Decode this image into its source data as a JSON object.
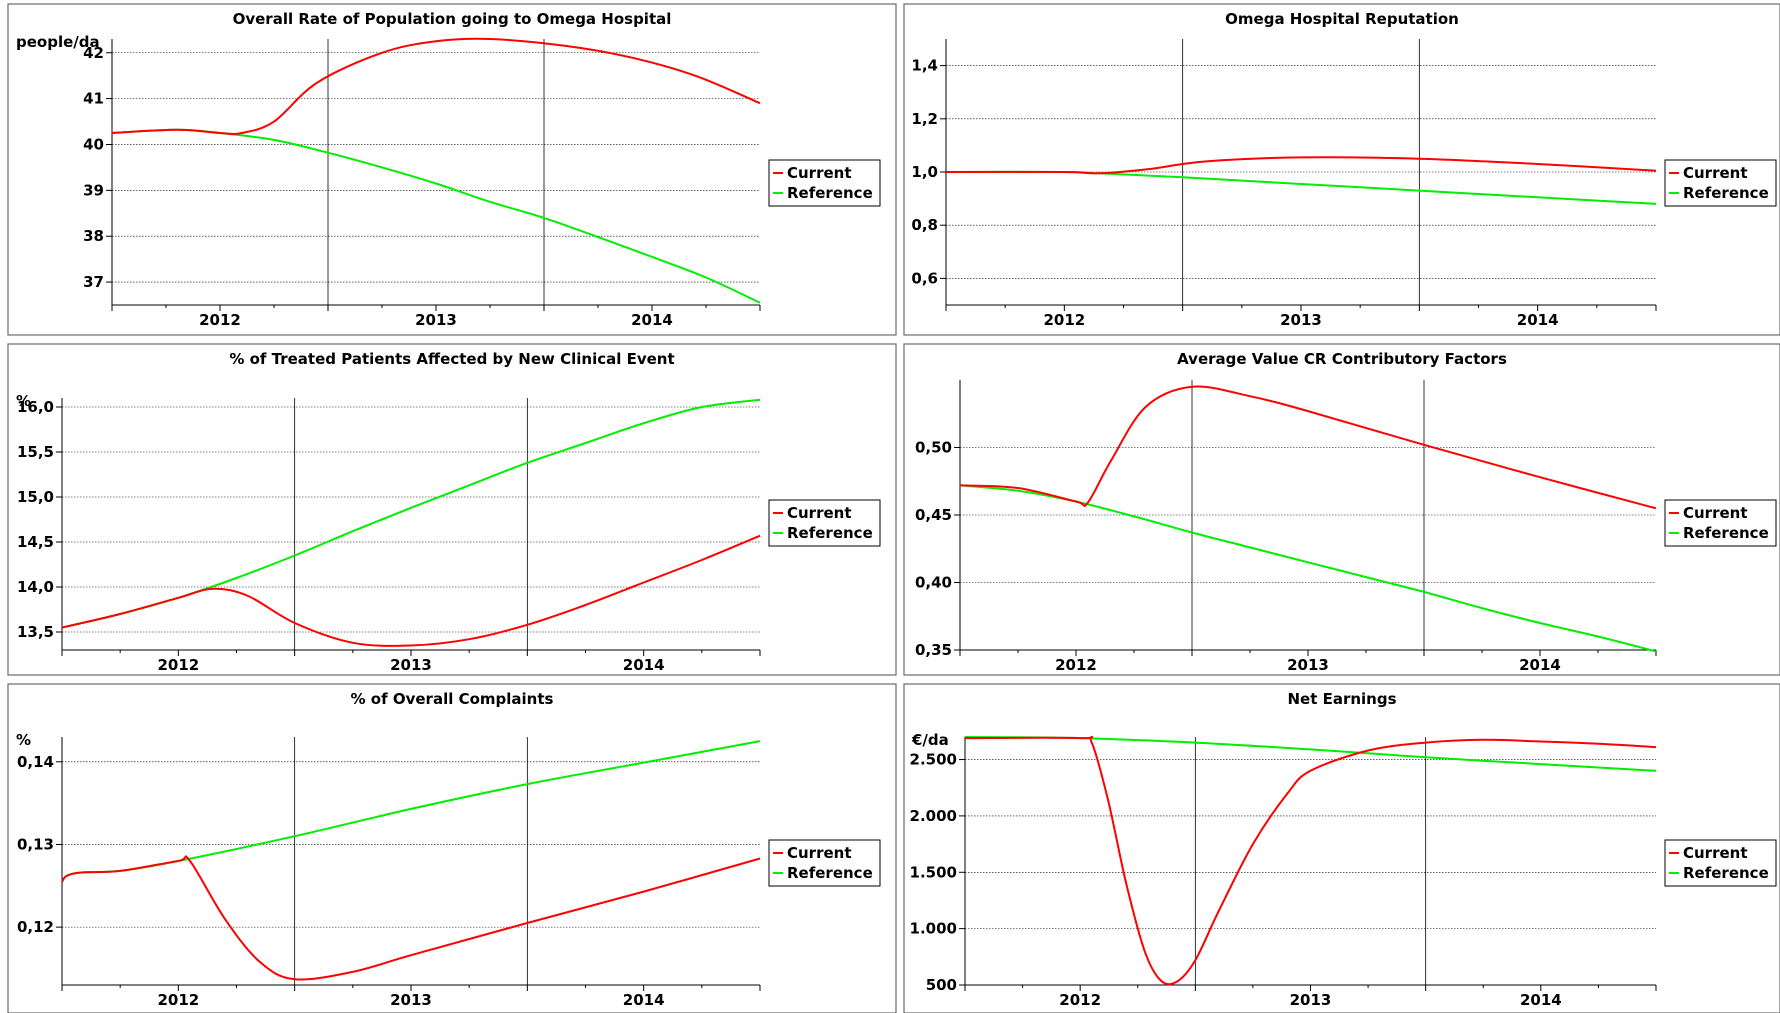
{
  "chart_data": [
    {
      "type": "line",
      "title": "Overall Rate of Population going to Omega Hospital",
      "unit": "people/da",
      "x_ticks": [
        "2012",
        "2013",
        "2014"
      ],
      "xlim": [
        2011.5,
        2014.5
      ],
      "ylim": [
        36.5,
        42.3
      ],
      "y_ticks": [
        37,
        38,
        39,
        40,
        41,
        42
      ],
      "y_tick_labels": [
        "37",
        "38",
        "39",
        "40",
        "41",
        "42"
      ],
      "legend": "right",
      "grid": true,
      "series": [
        {
          "name": "Current",
          "color": "#ff0000",
          "x": [
            2011.5,
            2011.8,
            2012.0,
            2012.1,
            2012.25,
            2012.45,
            2012.75,
            2013.0,
            2013.25,
            2013.6,
            2013.9,
            2014.2,
            2014.5
          ],
          "y": [
            40.25,
            40.32,
            40.25,
            40.25,
            40.5,
            41.35,
            42.0,
            42.25,
            42.3,
            42.15,
            41.9,
            41.5,
            40.9
          ]
        },
        {
          "name": "Reference",
          "color": "#00ee00",
          "x": [
            2011.5,
            2011.8,
            2012.0,
            2012.25,
            2012.5,
            2012.75,
            2013.0,
            2013.25,
            2013.5,
            2013.75,
            2014.0,
            2014.25,
            2014.5
          ],
          "y": [
            40.25,
            40.32,
            40.25,
            40.1,
            39.82,
            39.5,
            39.15,
            38.75,
            38.4,
            37.98,
            37.55,
            37.1,
            36.55
          ]
        }
      ]
    },
    {
      "type": "line",
      "title": "Omega Hospital Reputation",
      "unit": "",
      "x_ticks": [
        "2012",
        "2013",
        "2014"
      ],
      "xlim": [
        2011.5,
        2014.5
      ],
      "ylim": [
        0.5,
        1.5
      ],
      "y_ticks": [
        0.6,
        0.8,
        1.0,
        1.2,
        1.4
      ],
      "y_tick_labels": [
        "0,6",
        "0,8",
        "1,0",
        "1,2",
        "1,4"
      ],
      "legend": "right",
      "grid": true,
      "series": [
        {
          "name": "Current",
          "color": "#ff0000",
          "x": [
            2011.5,
            2012.0,
            2012.15,
            2012.35,
            2012.6,
            2013.0,
            2013.5,
            2014.0,
            2014.5
          ],
          "y": [
            1.0,
            1.0,
            0.995,
            1.01,
            1.04,
            1.055,
            1.05,
            1.03,
            1.005
          ]
        },
        {
          "name": "Reference",
          "color": "#00ee00",
          "x": [
            2011.5,
            2012.0,
            2012.15,
            2012.5,
            2013.0,
            2013.5,
            2014.0,
            2014.5
          ],
          "y": [
            1.0,
            1.0,
            0.995,
            0.98,
            0.955,
            0.93,
            0.905,
            0.88
          ]
        }
      ]
    },
    {
      "type": "line",
      "title": "% of Treated Patients Affected by New Clinical Event",
      "unit": "%",
      "x_ticks": [
        "2012",
        "2013",
        "2014"
      ],
      "xlim": [
        2011.5,
        2014.5
      ],
      "ylim": [
        13.3,
        16.1
      ],
      "y_ticks": [
        13.5,
        14.0,
        14.5,
        15.0,
        15.5,
        16.0
      ],
      "y_tick_labels": [
        "13,5",
        "14,0",
        "14,5",
        "15,0",
        "15,5",
        "16,0"
      ],
      "legend": "right",
      "grid": true,
      "series": [
        {
          "name": "Current",
          "color": "#ff0000",
          "x": [
            2011.5,
            2011.75,
            2012.0,
            2012.15,
            2012.3,
            2012.5,
            2012.75,
            2013.0,
            2013.25,
            2013.5,
            2013.75,
            2014.0,
            2014.25,
            2014.5
          ],
          "y": [
            13.55,
            13.7,
            13.88,
            13.98,
            13.9,
            13.6,
            13.38,
            13.35,
            13.42,
            13.58,
            13.8,
            14.05,
            14.3,
            14.57
          ]
        },
        {
          "name": "Reference",
          "color": "#00ee00",
          "x": [
            2011.5,
            2011.75,
            2012.0,
            2012.25,
            2012.5,
            2012.75,
            2013.0,
            2013.25,
            2013.5,
            2013.75,
            2014.0,
            2014.25,
            2014.5
          ],
          "y": [
            13.55,
            13.7,
            13.88,
            14.1,
            14.35,
            14.62,
            14.88,
            15.13,
            15.38,
            15.6,
            15.82,
            16.0,
            16.08
          ]
        }
      ]
    },
    {
      "type": "line",
      "title": "Average Value CR Contributory Factors",
      "unit": "",
      "x_ticks": [
        "2012",
        "2013",
        "2014"
      ],
      "xlim": [
        2011.5,
        2014.5
      ],
      "ylim": [
        0.35,
        0.55
      ],
      "y_ticks": [
        0.35,
        0.4,
        0.45,
        0.5
      ],
      "y_tick_labels": [
        "0,35",
        "0,40",
        "0,45",
        "0,50"
      ],
      "legend": "right",
      "grid": true,
      "series": [
        {
          "name": "Current",
          "color": "#ff0000",
          "x": [
            2011.5,
            2011.75,
            2012.0,
            2012.05,
            2012.15,
            2012.3,
            2012.5,
            2012.75,
            2013.0,
            2013.5,
            2014.0,
            2014.5
          ],
          "y": [
            0.472,
            0.47,
            0.46,
            0.459,
            0.49,
            0.53,
            0.545,
            0.538,
            0.527,
            0.502,
            0.478,
            0.455
          ]
        },
        {
          "name": "Reference",
          "color": "#00ee00",
          "x": [
            2011.5,
            2011.75,
            2012.0,
            2012.25,
            2012.5,
            2012.75,
            2013.0,
            2013.25,
            2013.5,
            2013.75,
            2014.0,
            2014.25,
            2014.5
          ],
          "y": [
            0.472,
            0.468,
            0.46,
            0.449,
            0.437,
            0.426,
            0.415,
            0.404,
            0.393,
            0.381,
            0.37,
            0.36,
            0.349
          ]
        }
      ]
    },
    {
      "type": "line",
      "title": "% of Overall Complaints",
      "unit": "%",
      "x_ticks": [
        "2012",
        "2013",
        "2014"
      ],
      "xlim": [
        2011.5,
        2014.5
      ],
      "ylim": [
        0.113,
        0.143
      ],
      "y_ticks": [
        0.12,
        0.13,
        0.14
      ],
      "y_tick_labels": [
        "0,12",
        "0,13",
        "0,14"
      ],
      "legend": "right",
      "grid": true,
      "series": [
        {
          "name": "Current",
          "color": "#ff0000",
          "x": [
            2011.5,
            2011.52,
            2011.58,
            2011.75,
            2012.0,
            2012.05,
            2012.2,
            2012.35,
            2012.5,
            2012.75,
            2013.0,
            2013.5,
            2014.0,
            2014.5
          ],
          "y": [
            0.1255,
            0.1262,
            0.1266,
            0.1268,
            0.128,
            0.128,
            0.121,
            0.1158,
            0.1137,
            0.1146,
            0.1166,
            0.1205,
            0.1243,
            0.1283
          ]
        },
        {
          "name": "Reference",
          "color": "#00ee00",
          "x": [
            2011.5,
            2011.52,
            2011.58,
            2011.75,
            2012.0,
            2012.5,
            2013.0,
            2013.5,
            2014.0,
            2014.5
          ],
          "y": [
            0.1255,
            0.1262,
            0.1266,
            0.1268,
            0.128,
            0.131,
            0.1343,
            0.1373,
            0.1399,
            0.1425
          ]
        }
      ]
    },
    {
      "type": "line",
      "title": "Net Earnings",
      "unit": "€/da",
      "x_ticks": [
        "2012",
        "2013",
        "2014"
      ],
      "xlim": [
        2011.5,
        2014.5
      ],
      "ylim": [
        500,
        2700
      ],
      "y_ticks": [
        500,
        1000,
        1500,
        2000,
        2500
      ],
      "y_tick_labels": [
        "500",
        "1.000",
        "1.500",
        "2.000",
        "2.500"
      ],
      "legend": "right",
      "grid": true,
      "series": [
        {
          "name": "Current",
          "color": "#ff0000",
          "x": [
            2011.5,
            2012.0,
            2012.05,
            2012.12,
            2012.2,
            2012.28,
            2012.35,
            2012.42,
            2012.5,
            2012.6,
            2012.75,
            2012.9,
            2013.0,
            2013.25,
            2013.5,
            2013.75,
            2014.0,
            2014.25,
            2014.5
          ],
          "y": [
            2690,
            2690,
            2650,
            2150,
            1400,
            800,
            540,
            530,
            720,
            1150,
            1750,
            2200,
            2400,
            2580,
            2650,
            2675,
            2660,
            2640,
            2610
          ]
        },
        {
          "name": "Reference",
          "color": "#00ee00",
          "x": [
            2011.5,
            2012.0,
            2012.5,
            2013.0,
            2013.5,
            2014.0,
            2014.5
          ],
          "y": [
            2700,
            2690,
            2650,
            2590,
            2520,
            2460,
            2400
          ]
        }
      ]
    }
  ]
}
